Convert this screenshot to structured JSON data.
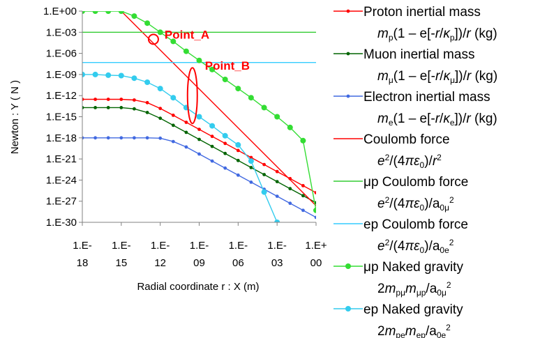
{
  "chart_data": {
    "type": "line",
    "xlabel": "Radial coordinate r : X (m)",
    "ylabel": "Newton : Y ( N )",
    "xscale": "log",
    "yscale": "log",
    "xlim": [
      1e-18,
      1
    ],
    "ylim": [
      1e-30,
      1
    ],
    "grid": false,
    "legend_position": "right",
    "x_ticks": [
      {
        "l1": "1.E-",
        "l2": "18",
        "value": 1e-18
      },
      {
        "l1": "1.E-",
        "l2": "15",
        "value": 1e-15
      },
      {
        "l1": "1.E-",
        "l2": "12",
        "value": 1e-12
      },
      {
        "l1": "1.E-",
        "l2": "09",
        "value": 1e-09
      },
      {
        "l1": "1.E-",
        "l2": "06",
        "value": 1e-06
      },
      {
        "l1": "1.E-",
        "l2": "03",
        "value": 0.001
      },
      {
        "l1": "1.E+",
        "l2": "00",
        "value": 1
      }
    ],
    "y_ticks": [
      {
        "label": "1.E+00",
        "value": 1
      },
      {
        "label": "1.E-03",
        "value": 0.001
      },
      {
        "label": "1.E-06",
        "value": 1e-06
      },
      {
        "label": "1.E-09",
        "value": 1e-09
      },
      {
        "label": "1.E-12",
        "value": 1e-12
      },
      {
        "label": "1.E-15",
        "value": 1e-15
      },
      {
        "label": "1.E-18",
        "value": 1e-18
      },
      {
        "label": "1.E-21",
        "value": 1e-21
      },
      {
        "label": "1.E-24",
        "value": 1e-24
      },
      {
        "label": "1.E-27",
        "value": 1e-27
      },
      {
        "label": "1.E-30",
        "value": 1e-30
      }
    ],
    "annotations": [
      {
        "text": "Point_A",
        "x": 3e-13,
        "y": 0.0001,
        "marker": "circle"
      },
      {
        "text": "Point_B",
        "x": 3e-10,
        "y": 1e-12,
        "marker": "ellipse"
      }
    ],
    "series": [
      {
        "legend": "Proton inertial  mass",
        "formula_parts": [
          [
            "m",
            "i"
          ],
          [
            "p",
            "sub"
          ],
          [
            "(1 – e[-",
            ""
          ],
          [
            "r",
            "i"
          ],
          [
            "/",
            ""
          ],
          [
            "κ",
            "i"
          ],
          [
            "p",
            "sub"
          ],
          [
            "])/",
            ""
          ],
          [
            "r",
            "i"
          ],
          [
            " (kg)",
            ""
          ]
        ],
        "color": "#ff0000",
        "marker": "dot-small",
        "x": [
          1e-18,
          1e-17,
          1e-16,
          1e-15,
          1e-14,
          1e-13,
          1e-12,
          1e-11,
          1e-10,
          1e-09,
          1e-08,
          1e-07,
          1e-06,
          1e-05,
          0.0001,
          0.001,
          0.01,
          0.1,
          1
        ],
        "y": [
          3e-13,
          3e-13,
          3e-13,
          3e-13,
          2.4e-13,
          1e-13,
          1.5e-14,
          1.6e-15,
          1.6e-16,
          1.6e-17,
          1.6e-18,
          1.6e-19,
          1.6e-20,
          1.6e-21,
          1.6e-22,
          1.6e-23,
          1.6e-24,
          1.6e-25,
          1.6e-26
        ]
      },
      {
        "legend": "Muon inertial mass",
        "formula_parts": [
          [
            "m",
            "i"
          ],
          [
            "μ",
            "sub"
          ],
          [
            "(1 – e[-",
            ""
          ],
          [
            "r",
            "i"
          ],
          [
            "/",
            ""
          ],
          [
            "κ",
            "i"
          ],
          [
            "μ",
            "sub"
          ],
          [
            "])/",
            ""
          ],
          [
            "r",
            "i"
          ],
          [
            " (kg)",
            ""
          ]
        ],
        "color": "#006400",
        "marker": "dot-small",
        "x": [
          1e-18,
          1e-17,
          1e-16,
          1e-15,
          1e-14,
          1e-13,
          1e-12,
          1e-11,
          1e-10,
          1e-09,
          1e-08,
          1e-07,
          1e-06,
          1e-05,
          0.0001,
          0.001,
          0.01,
          0.1,
          1
        ],
        "y": [
          2e-14,
          2e-14,
          2e-14,
          2e-14,
          1.3e-14,
          4e-15,
          6e-16,
          6e-17,
          6e-18,
          6e-19,
          6e-20,
          6e-21,
          6e-22,
          6e-23,
          6e-24,
          6e-25,
          6e-26,
          6e-27,
          6e-28
        ]
      },
      {
        "legend": "Electron inertial mass",
        "formula_parts": [
          [
            "m",
            "i"
          ],
          [
            "e",
            "sub"
          ],
          [
            "(1 – e[-",
            ""
          ],
          [
            "r",
            "i"
          ],
          [
            "/",
            ""
          ],
          [
            "κ",
            "i"
          ],
          [
            "e",
            "sub"
          ],
          [
            "])/",
            ""
          ],
          [
            "r",
            "i"
          ],
          [
            " (kg)",
            ""
          ]
        ],
        "color": "#4169e1",
        "marker": "dot-small",
        "x": [
          1e-18,
          1e-17,
          1e-16,
          1e-15,
          1e-14,
          1e-13,
          1e-12,
          1e-11,
          1e-10,
          1e-09,
          1e-08,
          1e-07,
          1e-06,
          1e-05,
          0.0001,
          0.001,
          0.01,
          0.1,
          1
        ],
        "y": [
          1e-18,
          1e-18,
          1e-18,
          1e-18,
          1e-18,
          1e-18,
          9e-19,
          3e-19,
          5e-20,
          5e-21,
          5e-22,
          5e-23,
          5e-24,
          5e-25,
          5e-26,
          5e-27,
          5e-28,
          5e-29,
          5e-30
        ]
      },
      {
        "legend": "Coulomb force",
        "formula_parts": [
          [
            "e",
            "i"
          ],
          [
            "2",
            "sup"
          ],
          [
            "/(4",
            ""
          ],
          [
            "πε",
            "i"
          ],
          [
            "0",
            "sub"
          ],
          [
            ")/",
            ""
          ],
          [
            "r",
            "i"
          ],
          [
            "2",
            "sup"
          ]
        ],
        "color": "#ff0000",
        "marker": "none",
        "x": [
          1e-15,
          1
        ],
        "y": [
          1,
          2.3e-28
        ]
      },
      {
        "legend": "μp Coulomb force",
        "formula_parts": [
          [
            "e",
            "i"
          ],
          [
            "2",
            "sup"
          ],
          [
            "/(4",
            ""
          ],
          [
            "πε",
            "i"
          ],
          [
            "0",
            "sub"
          ],
          [
            ")/a",
            ""
          ],
          [
            "0μ",
            "sub"
          ],
          [
            "2",
            "sup"
          ]
        ],
        "color": "#33cc33",
        "marker": "none",
        "x": [
          1e-18,
          1
        ],
        "y": [
          0.001,
          0.001
        ]
      },
      {
        "legend": "ep Coulomb force",
        "formula_parts": [
          [
            "e",
            "i"
          ],
          [
            "2",
            "sup"
          ],
          [
            "/(4",
            ""
          ],
          [
            "πε",
            "i"
          ],
          [
            "0",
            "sub"
          ],
          [
            ")/a",
            ""
          ],
          [
            "0e",
            "sub"
          ],
          [
            "2",
            "sup"
          ]
        ],
        "color": "#33ccff",
        "marker": "none",
        "x": [
          1e-18,
          1
        ],
        "y": [
          5e-08,
          5e-08
        ]
      },
      {
        "legend": "μp Naked gravity",
        "formula_parts": [
          [
            "2",
            ""
          ],
          [
            "m",
            "i"
          ],
          [
            "pμ",
            "sub"
          ],
          [
            "m",
            "i"
          ],
          [
            "μp",
            "sub"
          ],
          [
            "/a",
            ""
          ],
          [
            "0μ",
            "sub"
          ],
          [
            "2",
            "sup"
          ]
        ],
        "color": "#33dd33",
        "marker": "dot-large",
        "x": [
          1e-18,
          1e-17,
          1e-16,
          1e-15,
          1e-14,
          1e-13,
          1e-12,
          1e-11,
          1e-10,
          1e-09,
          1e-08,
          1e-07,
          1e-06,
          1e-05,
          0.0001,
          0.001,
          0.01,
          0.1,
          1
        ],
        "y": [
          1,
          1,
          1,
          1,
          0.2,
          0.02,
          0.001,
          5e-05,
          2e-06,
          1e-07,
          5e-09,
          2e-10,
          1e-11,
          5e-13,
          2e-14,
          1e-15,
          3e-17,
          4e-19,
          5e-29
        ]
      },
      {
        "legend": "ep Naked gravity",
        "formula_parts": [
          [
            "2",
            ""
          ],
          [
            "m",
            "i"
          ],
          [
            "pe",
            "sub"
          ],
          [
            "m",
            "i"
          ],
          [
            "ep",
            "sub"
          ],
          [
            "/a",
            ""
          ],
          [
            "0e",
            "sub"
          ],
          [
            "2",
            "sup"
          ]
        ],
        "color": "#33ccee",
        "marker": "dot-large",
        "x": [
          1e-18,
          1e-17,
          1e-16,
          1e-15,
          1e-14,
          1e-13,
          1e-12,
          1e-11,
          1e-10,
          1e-09,
          1e-08,
          1e-07,
          1e-06,
          1e-05,
          0.0001,
          0.001
        ],
        "y": [
          1e-09,
          1e-09,
          8e-10,
          7e-10,
          3e-10,
          8e-11,
          1e-11,
          5e-13,
          2e-14,
          1e-15,
          5e-17,
          2e-18,
          1e-19,
          5e-22,
          2e-26,
          1e-30
        ]
      }
    ]
  }
}
